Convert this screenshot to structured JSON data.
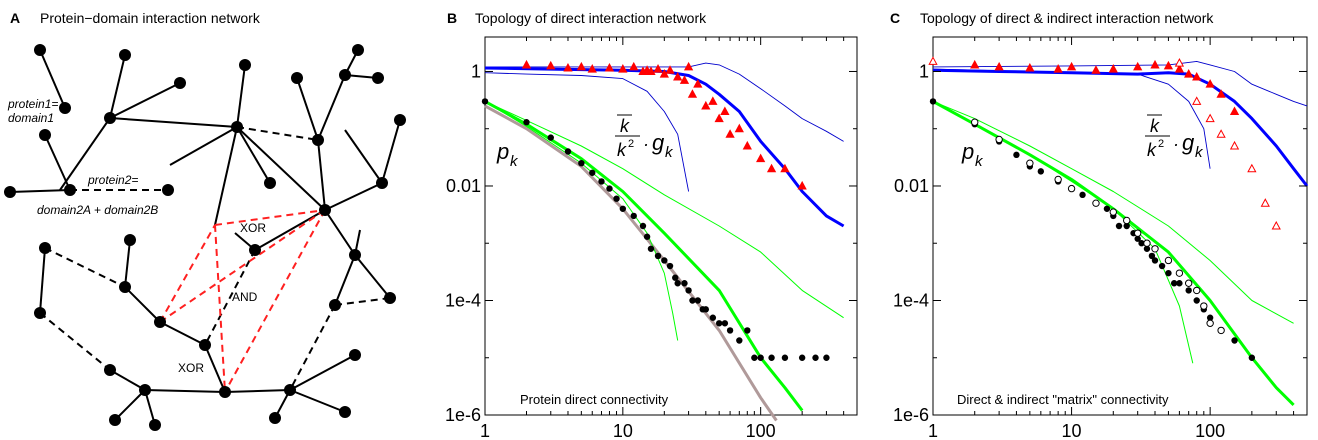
{
  "panel_a": {
    "letter": "A",
    "title": "Protein−domain interaction network",
    "labels": {
      "protein1": "protein1=",
      "domain1": "domain1",
      "protein2": "protein2=",
      "domain2": "domain2A + domain2B",
      "xor_top": "XOR",
      "and": "AND",
      "xor_bottom": "XOR"
    }
  },
  "chart_data": [
    {
      "type": "scatter",
      "panel": "B",
      "title": "Topology of direct interaction network",
      "annotation": "Protein direct connectivity",
      "pk_label": "p",
      "pk_sub": "k",
      "gk_label": "g",
      "gk_sub": "k",
      "gk_frac_num": "k",
      "gk_frac_den": "k",
      "gk_frac_sup": "2",
      "x_scale": "log",
      "y_scale": "log",
      "xlim": [
        1,
        500
      ],
      "ylim": [
        1e-06,
        4
      ],
      "xticks": [
        1,
        10,
        100
      ],
      "xtick_labels": [
        "1",
        "10",
        "100"
      ],
      "yticks": [
        1,
        0.01,
        0.0001,
        1e-06
      ],
      "ytick_labels": [
        "1",
        "0.01",
        "1e-4",
        "1e-6"
      ],
      "series": [
        {
          "kind": "points",
          "marker": "dot",
          "color": "#000000",
          "x": [
            1,
            2,
            3,
            4,
            5,
            6,
            7,
            8,
            9,
            10,
            12,
            14,
            15,
            16,
            18,
            20,
            22,
            24,
            25,
            28,
            30,
            32,
            35,
            38,
            40,
            45,
            50,
            55,
            60,
            70,
            80,
            90,
            100,
            120,
            150,
            200,
            250,
            300
          ],
          "y": [
            0.3,
            0.13,
            0.07,
            0.04,
            0.025,
            0.017,
            0.012,
            0.009,
            0.006,
            0.004,
            0.003,
            0.002,
            0.0013,
            0.0008,
            0.0006,
            0.0005,
            0.0004,
            0.00025,
            0.0002,
            0.0002,
            0.00015,
            0.0001,
            0.0001,
            7e-05,
            7e-05,
            5e-05,
            4e-05,
            4e-05,
            3e-05,
            2e-05,
            3e-05,
            1e-05,
            1e-05,
            1e-05,
            1e-05,
            1e-05,
            1e-05,
            1e-05
          ]
        },
        {
          "kind": "points",
          "marker": "triangle",
          "color": "#ff0000",
          "x": [
            2,
            3,
            4,
            5,
            6,
            8,
            10,
            12,
            14,
            15,
            16,
            18,
            20,
            22,
            25,
            28,
            30,
            32,
            35,
            40,
            45,
            50,
            55,
            60,
            70,
            80,
            100,
            120,
            150,
            200
          ],
          "y": [
            1.3,
            1.25,
            1.15,
            1.2,
            1.1,
            1.15,
            1.1,
            1.2,
            1.0,
            1.05,
            1.0,
            1.1,
            0.9,
            1.05,
            0.8,
            0.7,
            1.2,
            0.4,
            0.6,
            0.25,
            0.3,
            0.15,
            0.2,
            0.08,
            0.1,
            0.05,
            0.03,
            0.02,
            0.02,
            0.01
          ]
        },
        {
          "kind": "line",
          "color": "#ffffff",
          "width": 0.8,
          "x": [
            1,
            2,
            5,
            10,
            15,
            20,
            25,
            28,
            30
          ],
          "y": [
            1,
            0.95,
            0.9,
            0.8,
            0.5,
            0.25,
            0.1,
            0.03,
            0.008
          ]
        },
        {
          "kind": "line",
          "color": "#0000cc",
          "width": 0.9,
          "x": [
            1,
            2,
            5,
            10,
            15,
            20,
            25,
            30
          ],
          "y": [
            0.95,
            0.9,
            0.85,
            0.75,
            0.45,
            0.2,
            0.08,
            0.008
          ]
        },
        {
          "kind": "line",
          "color": "#0000cc",
          "width": 0.9,
          "x": [
            1,
            3,
            10,
            30,
            40,
            50,
            70,
            100,
            150,
            200,
            300,
            400
          ],
          "y": [
            1.2,
            1.2,
            1.2,
            1.2,
            1.4,
            1.3,
            0.9,
            0.5,
            0.25,
            0.15,
            0.09,
            0.06
          ]
        },
        {
          "kind": "line",
          "color": "#0000ff",
          "width": 3,
          "x": [
            1,
            3,
            10,
            20,
            30,
            40,
            50,
            70,
            100,
            150,
            200,
            300,
            400
          ],
          "y": [
            1.15,
            1.1,
            1.05,
            1.0,
            0.85,
            0.6,
            0.4,
            0.2,
            0.06,
            0.02,
            0.008,
            0.003,
            0.002
          ]
        },
        {
          "kind": "line",
          "color": "#b09a9a",
          "width": 3,
          "x": [
            1,
            2,
            5,
            10,
            20,
            50,
            100,
            130
          ],
          "y": [
            0.25,
            0.1,
            0.022,
            0.004,
            0.0005,
            3e-05,
            2e-06,
            8e-07
          ]
        },
        {
          "kind": "line",
          "color": "#00ff00",
          "width": 1,
          "x": [
            1,
            2,
            5,
            10,
            15,
            20,
            23,
            25
          ],
          "y": [
            0.3,
            0.11,
            0.025,
            0.006,
            0.0015,
            0.0003,
            6e-05,
            2e-05
          ]
        },
        {
          "kind": "line",
          "color": "#00ff00",
          "width": 1,
          "x": [
            1,
            2,
            5,
            10,
            20,
            50,
            100,
            200,
            400
          ],
          "y": [
            0.3,
            0.14,
            0.05,
            0.02,
            0.007,
            0.002,
            0.0007,
            0.00015,
            5e-05
          ]
        },
        {
          "kind": "line",
          "color": "#00ff00",
          "width": 3,
          "x": [
            1,
            2,
            5,
            10,
            20,
            50,
            100,
            150,
            200
          ],
          "y": [
            0.3,
            0.12,
            0.03,
            0.008,
            0.0015,
            0.00015,
            1e-05,
            3e-06,
            1.2e-06
          ]
        }
      ]
    },
    {
      "type": "scatter",
      "panel": "C",
      "title": "Topology of direct & indirect interaction network",
      "annotation": "Direct & indirect \"matrix\" connectivity",
      "pk_label": "p",
      "pk_sub": "k",
      "gk_label": "g",
      "gk_sub": "k",
      "gk_frac_num": "k",
      "gk_frac_den": "k",
      "gk_frac_sup": "2",
      "x_scale": "log",
      "y_scale": "log",
      "xlim": [
        1,
        500
      ],
      "ylim": [
        1e-06,
        4
      ],
      "xticks": [
        1,
        10,
        100
      ],
      "xtick_labels": [
        "1",
        "10",
        "100"
      ],
      "yticks": [
        1,
        0.01,
        0.0001,
        1e-06
      ],
      "ytick_labels": [
        "1",
        "0.01",
        "1e-4",
        "1e-6"
      ],
      "series": [
        {
          "kind": "points",
          "marker": "dot",
          "color": "#000000",
          "x": [
            1,
            2,
            3,
            4,
            5,
            6,
            8,
            10,
            12,
            15,
            18,
            20,
            22,
            25,
            28,
            30,
            32,
            35,
            38,
            40,
            45,
            50,
            55,
            60,
            70,
            80,
            90,
            100,
            120,
            150,
            200
          ],
          "y": [
            0.3,
            0.12,
            0.06,
            0.035,
            0.022,
            0.018,
            0.012,
            0.009,
            0.007,
            0.005,
            0.004,
            0.003,
            0.002,
            0.002,
            0.0015,
            0.0012,
            0.001,
            0.0008,
            0.0006,
            0.0005,
            0.0004,
            0.0003,
            0.0002,
            0.0002,
            0.00015,
            0.0001,
            7e-05,
            5e-05,
            3e-05,
            2e-05,
            1e-05
          ]
        },
        {
          "kind": "points",
          "marker": "circle",
          "color": "#000000",
          "x": [
            2,
            3,
            5,
            8,
            10,
            15,
            20,
            25,
            30,
            35,
            40,
            50,
            60,
            70,
            80,
            90,
            100,
            120
          ],
          "y": [
            0.13,
            0.065,
            0.025,
            0.013,
            0.009,
            0.005,
            0.0035,
            0.0025,
            0.0015,
            0.001,
            0.0008,
            0.0005,
            0.0003,
            0.0002,
            0.00015,
            8e-05,
            4e-05,
            3e-05
          ]
        },
        {
          "kind": "points",
          "marker": "triangle",
          "color": "#ff0000",
          "x": [
            2,
            3,
            5,
            8,
            10,
            15,
            20,
            30,
            40,
            50,
            60,
            70,
            80,
            100,
            120,
            150
          ],
          "y": [
            1.3,
            1.2,
            1.15,
            1.1,
            1.2,
            1.05,
            1.1,
            1.2,
            1.3,
            1.25,
            1.1,
            0.9,
            0.8,
            0.6,
            0.4,
            0.2
          ]
        },
        {
          "kind": "points",
          "marker": "triangle-open",
          "color": "#ff0000",
          "x": [
            1,
            60,
            80,
            100,
            120,
            150,
            200,
            250,
            300
          ],
          "y": [
            1.5,
            1.4,
            0.3,
            0.15,
            0.08,
            0.05,
            0.02,
            0.005,
            0.002
          ]
        },
        {
          "kind": "line",
          "color": "#0000cc",
          "width": 0.9,
          "x": [
            1,
            5,
            10,
            30,
            50,
            70,
            90,
            100
          ],
          "y": [
            1.1,
            1.0,
            0.95,
            0.9,
            0.6,
            0.3,
            0.1,
            0.02
          ]
        },
        {
          "kind": "line",
          "color": "#0000cc",
          "width": 0.9,
          "x": [
            1,
            10,
            50,
            80,
            100,
            150,
            200,
            300,
            400,
            500
          ],
          "y": [
            1.2,
            1.25,
            1.3,
            1.5,
            1.3,
            1.0,
            0.6,
            0.4,
            0.3,
            0.25
          ]
        },
        {
          "kind": "line",
          "color": "#0000ff",
          "width": 3,
          "x": [
            1,
            3,
            10,
            30,
            50,
            70,
            100,
            150,
            200,
            300,
            400,
            500
          ],
          "y": [
            1.05,
            1.0,
            0.95,
            0.9,
            0.95,
            0.9,
            0.6,
            0.3,
            0.15,
            0.05,
            0.02,
            0.01
          ]
        },
        {
          "kind": "line",
          "color": "#00ff00",
          "width": 1,
          "x": [
            1,
            2,
            5,
            10,
            20,
            40,
            60,
            75
          ],
          "y": [
            0.3,
            0.12,
            0.035,
            0.012,
            0.004,
            0.0008,
            8e-05,
            8e-06
          ]
        },
        {
          "kind": "line",
          "color": "#00ff00",
          "width": 1,
          "x": [
            1,
            2,
            5,
            10,
            20,
            50,
            100,
            200,
            400
          ],
          "y": [
            0.3,
            0.15,
            0.05,
            0.02,
            0.008,
            0.002,
            0.0005,
            0.0001,
            4e-05
          ]
        },
        {
          "kind": "line",
          "color": "#00ff00",
          "width": 3,
          "x": [
            1,
            2,
            5,
            10,
            20,
            50,
            100,
            200,
            300,
            400
          ],
          "y": [
            0.3,
            0.12,
            0.035,
            0.013,
            0.004,
            0.0007,
            0.0001,
            1e-05,
            3e-06,
            1.5e-06
          ]
        }
      ]
    }
  ]
}
